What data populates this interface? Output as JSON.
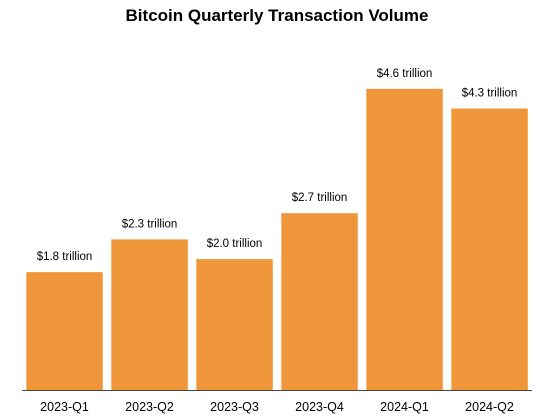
{
  "chart_data": {
    "type": "bar",
    "title": "Bitcoin Quarterly Transaction Volume",
    "xlabel": "",
    "ylabel": "",
    "categories": [
      "2023-Q1",
      "2023-Q2",
      "2023-Q3",
      "2023-Q4",
      "2024-Q1",
      "2024-Q2"
    ],
    "values": [
      1.8,
      2.3,
      2.0,
      2.7,
      4.6,
      4.3
    ],
    "data_labels": [
      "$1.8 trillion",
      "$2.3 trillion",
      "$2.0 trillion",
      "$2.7 trillion",
      "$4.6 trillion",
      "$4.3 trillion"
    ],
    "ylim": [
      0,
      4.75
    ],
    "grid": false,
    "bar_color": "#f0963a",
    "axis_color": "#444444"
  }
}
